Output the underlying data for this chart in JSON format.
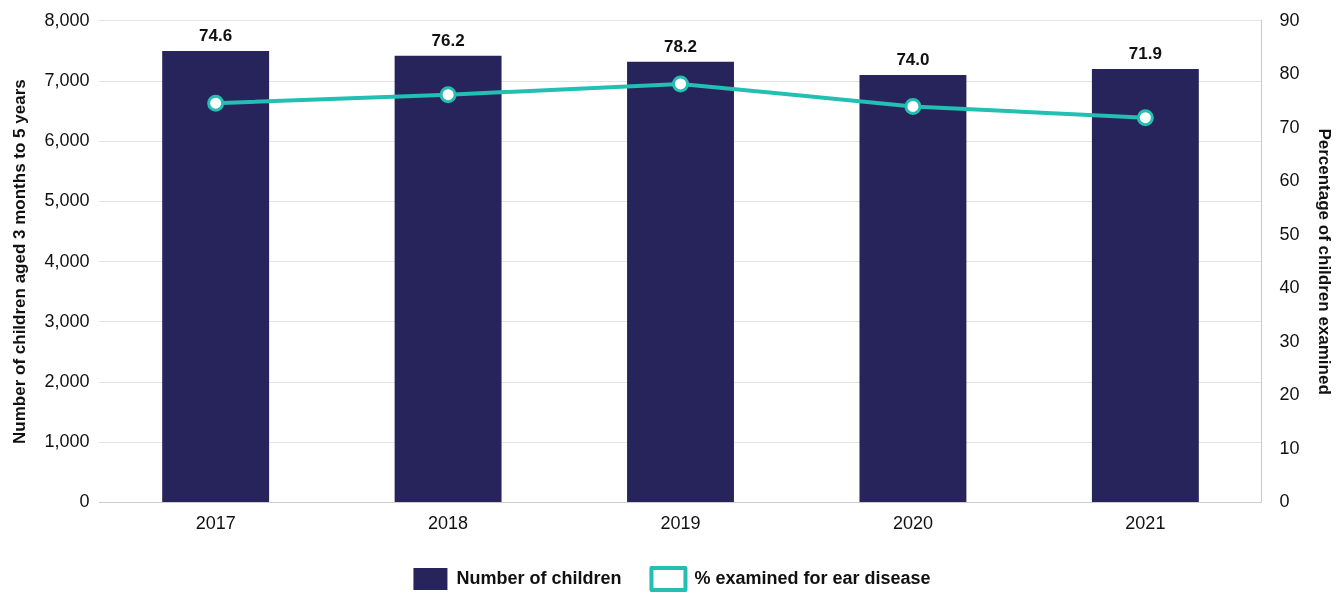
{
  "chart_data": {
    "type": "bar",
    "categories": [
      "2017",
      "2018",
      "2019",
      "2020",
      "2021"
    ],
    "ylabel": "Number of children aged 3 months to 5 years",
    "y2label": "Percentage of children examined",
    "series": [
      {
        "name": "Number of children",
        "color": "#27245c",
        "values": [
          7500,
          7420,
          7320,
          7100,
          7200
        ]
      },
      {
        "name": "% examined for ear disease",
        "type": "line",
        "axis": "y2",
        "color": "#22bfb2",
        "marker": "circle",
        "values": [
          74.6,
          76.2,
          78.2,
          74.0,
          71.9
        ],
        "value_labels": [
          "74.6",
          "76.2",
          "78.2",
          "74.0",
          "71.9"
        ]
      }
    ],
    "ylim": [
      0,
      8000
    ],
    "yticks": [
      {
        "value": 0,
        "label": "0"
      },
      {
        "value": 1000,
        "label": "1,000"
      },
      {
        "value": 2000,
        "label": "2,000"
      },
      {
        "value": 3000,
        "label": "3,000"
      },
      {
        "value": 4000,
        "label": "4,000"
      },
      {
        "value": 5000,
        "label": "5,000"
      },
      {
        "value": 6000,
        "label": "6,000"
      },
      {
        "value": 7000,
        "label": "7,000"
      },
      {
        "value": 8000,
        "label": "8,000"
      }
    ],
    "y2lim": [
      0,
      90
    ],
    "y2ticks": [
      0,
      10,
      20,
      30,
      40,
      50,
      60,
      70,
      80,
      90
    ],
    "grid": "y",
    "legend": "bottom"
  }
}
